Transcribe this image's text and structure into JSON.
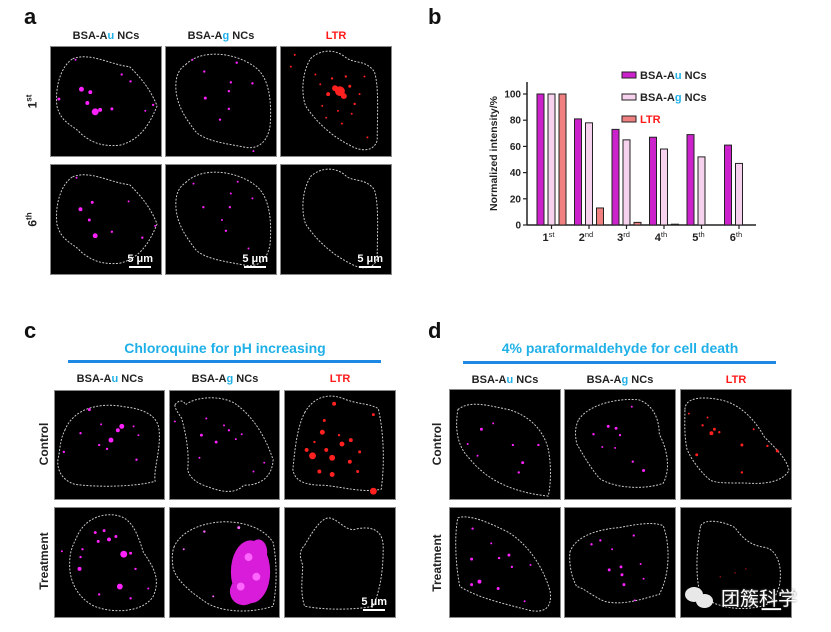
{
  "panels": {
    "a": {
      "letter": "a",
      "columns": [
        {
          "prefix": "BSA-A",
          "highlight": "u",
          "suffix": " NCs"
        },
        {
          "prefix": "BSA-A",
          "highlight": "g",
          "suffix": " NCs"
        },
        {
          "label": "LTR"
        }
      ],
      "rows": [
        {
          "label_base": "1",
          "label_sup": "st"
        },
        {
          "label_base": "6",
          "label_sup": "th"
        }
      ],
      "scale_bar": "5 μm"
    },
    "b": {
      "letter": "b"
    },
    "c": {
      "letter": "c",
      "header": "Chloroquine for pH increasing",
      "columns": [
        {
          "prefix": "BSA-A",
          "highlight": "u",
          "suffix": " NCs"
        },
        {
          "prefix": "BSA-A",
          "highlight": "g",
          "suffix": " NCs"
        },
        {
          "label": "LTR"
        }
      ],
      "rows": [
        {
          "label": "Control"
        },
        {
          "label": "Treatment"
        }
      ],
      "scale_bar": "5 μm"
    },
    "d": {
      "letter": "d",
      "header": "4% paraformaldehyde for cell death",
      "columns": [
        {
          "prefix": "BSA-A",
          "highlight": "u",
          "suffix": " NCs"
        },
        {
          "prefix": "BSA-A",
          "highlight": "g",
          "suffix": " NCs"
        },
        {
          "label": "LTR"
        }
      ],
      "rows": [
        {
          "label": "Control"
        },
        {
          "label": "Treatment"
        }
      ]
    }
  },
  "colors": {
    "accent_text": "#1fb0e8",
    "header_line": "#1e88e5",
    "ltr_text": "#ff1a1a",
    "au_bar": "#cc22cc",
    "ag_bar": "#f6d2ee",
    "ltr_bar": "#f08080",
    "magenta_dot": "#ff22ff",
    "red_dot": "#ff2020"
  },
  "watermark": "团簇科学",
  "chart_data": {
    "type": "bar",
    "title": "",
    "xlabel": "",
    "ylabel": "Normalized intensity/%",
    "ylim": [
      0,
      110
    ],
    "yticks": [
      0,
      20,
      40,
      60,
      80,
      100
    ],
    "categories": [
      {
        "base": "1",
        "sup": "st"
      },
      {
        "base": "2",
        "sup": "nd"
      },
      {
        "base": "3",
        "sup": "rd"
      },
      {
        "base": "4",
        "sup": "th"
      },
      {
        "base": "5",
        "sup": "th"
      },
      {
        "base": "6",
        "sup": "th"
      }
    ],
    "series": [
      {
        "name": "BSA-Au NCs",
        "prefix": "BSA-A",
        "highlight": "u",
        "suffix": " NCs",
        "color": "#cc22cc",
        "values": [
          100,
          81,
          73,
          67,
          69,
          61
        ]
      },
      {
        "name": "BSA-Ag NCs",
        "prefix": "BSA-A",
        "highlight": "g",
        "suffix": " NCs",
        "color": "#f6d2ee",
        "values": [
          100,
          78,
          65,
          58,
          52,
          47
        ]
      },
      {
        "name": "LTR",
        "color": "#f08080",
        "values": [
          100,
          13,
          2,
          0,
          null,
          null
        ]
      }
    ],
    "legend_position": "top-right",
    "grid": false
  }
}
